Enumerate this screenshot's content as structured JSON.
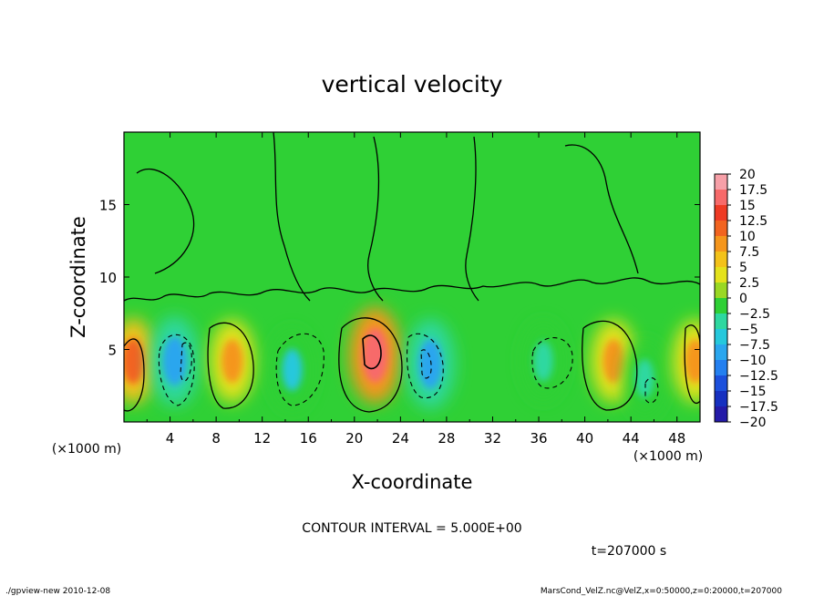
{
  "chart_data": {
    "type": "heatmap",
    "title": "vertical velocity",
    "xlabel": "X-coordinate",
    "ylabel": "Z-coordinate",
    "x_unit": "(×1000 m)",
    "y_unit": "(×1000 m)",
    "xlim": [
      0,
      50
    ],
    "ylim": [
      0,
      20
    ],
    "x_ticks": [
      "4",
      "8",
      "12",
      "16",
      "20",
      "24",
      "28",
      "32",
      "36",
      "40",
      "44",
      "48"
    ],
    "y_ticks": [
      "5",
      "10",
      "15"
    ],
    "colorbar": {
      "labels": [
        "20",
        "17.5",
        "15",
        "12.5",
        "10",
        "7.5",
        "5",
        "2.5",
        "0",
        "−2.5",
        "−5",
        "−7.5",
        "−10",
        "−12.5",
        "−15",
        "−17.5",
        "−20"
      ],
      "colors": [
        "#f7a0a8",
        "#f76a6a",
        "#ee3a24",
        "#f26420",
        "#f5961c",
        "#f3c21a",
        "#e4e21c",
        "#9ad824",
        "#2fd035",
        "#2ed8a0",
        "#25c8dc",
        "#2aa6ee",
        "#2480f0",
        "#1c50dc",
        "#1630c0",
        "#241aa8",
        "#5a1ca4"
      ]
    },
    "contour_interval": "CONTOUR INTERVAL = 5.000E+00",
    "time_label": "t=207000 s",
    "footer_left": "./gpview-new   2010-12-08",
    "footer_right": "MarsCond_VelZ.nc@VelZ,x=0:50000,z=0:20000,t=207000",
    "cells": [
      {
        "x": 0.8,
        "z": 4.2,
        "v": 9
      },
      {
        "x": 4.4,
        "z": 4.2,
        "v": -11
      },
      {
        "x": 9.4,
        "z": 4.2,
        "v": 8
      },
      {
        "x": 14.6,
        "z": 3.6,
        "v": -7
      },
      {
        "x": 21.8,
        "z": 4.6,
        "v": 14
      },
      {
        "x": 26.6,
        "z": 4.0,
        "v": -11
      },
      {
        "x": 36.4,
        "z": 4.2,
        "v": -6
      },
      {
        "x": 42.5,
        "z": 4.2,
        "v": 8
      },
      {
        "x": 45.2,
        "z": 3.0,
        "v": -5
      },
      {
        "x": 49.6,
        "z": 4.2,
        "v": 8
      }
    ]
  }
}
